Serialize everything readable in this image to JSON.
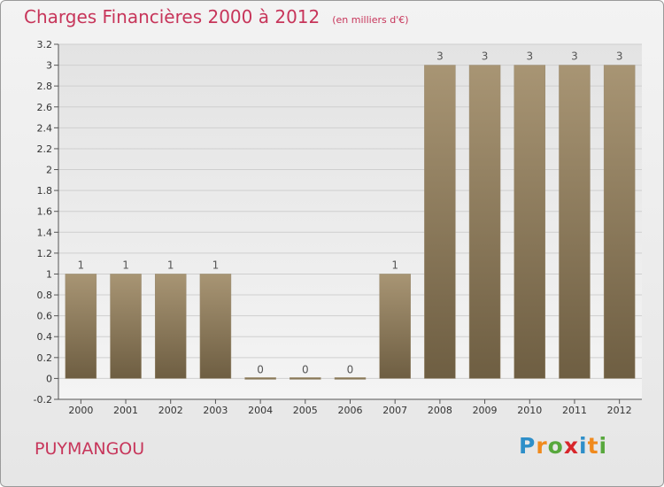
{
  "header": {
    "title": "Charges Financières 2000 à 2012",
    "subtitle": "(en milliers d'€)"
  },
  "footer": {
    "commune": "PUYMANGOU",
    "logo": {
      "letters": [
        "P",
        "r",
        "o",
        "x",
        "i",
        "t",
        "i"
      ],
      "colors": [
        "#2e8fc9",
        "#f08a1d",
        "#58a83d",
        "#d8262b",
        "#2e8fc9",
        "#f08a1d",
        "#58a83d"
      ]
    }
  },
  "chart_data": {
    "type": "bar",
    "categories": [
      "2000",
      "2001",
      "2002",
      "2003",
      "2004",
      "2005",
      "2006",
      "2007",
      "2008",
      "2009",
      "2010",
      "2011",
      "2012"
    ],
    "values": [
      1,
      1,
      1,
      1,
      0,
      0,
      0,
      1,
      3,
      3,
      3,
      3,
      3
    ],
    "data_labels": [
      "1",
      "1",
      "1",
      "1",
      "0",
      "0",
      "0",
      "1",
      "3",
      "3",
      "3",
      "3",
      "3"
    ],
    "title": "Charges Financières 2000 à 2012",
    "xlabel": "",
    "ylabel": "",
    "ylim": [
      -0.2,
      3.2
    ],
    "yticks": [
      "-0.2",
      "0",
      "0.2",
      "0.4",
      "0.6",
      "0.8",
      "1",
      "1.2",
      "1.4",
      "1.6",
      "1.8",
      "2",
      "2.2",
      "2.4",
      "2.6",
      "2.8",
      "3",
      "3.2"
    ],
    "ytick_values": [
      -0.2,
      0,
      0.2,
      0.4,
      0.6,
      0.8,
      1,
      1.2,
      1.4,
      1.6,
      1.8,
      2,
      2.2,
      2.4,
      2.6,
      2.8,
      3,
      3.2
    ],
    "grid": true,
    "colors": {
      "bar": "#8b7a5c",
      "grid": "#cfcfcf",
      "text": "#c7355a"
    }
  }
}
